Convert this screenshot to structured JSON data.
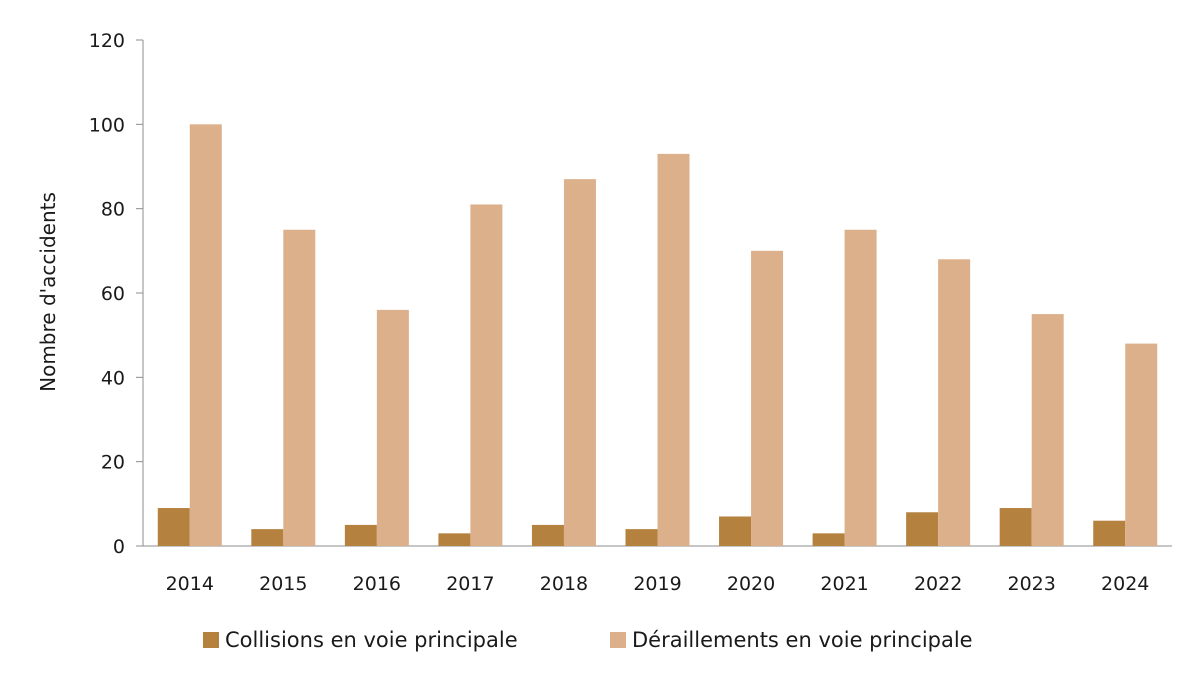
{
  "chart_data": {
    "type": "bar",
    "ylabel": "Nombre d'accidents",
    "ylim": [
      0,
      120
    ],
    "yticks": [
      0,
      20,
      40,
      60,
      80,
      100,
      120
    ],
    "categories": [
      "2014",
      "2015",
      "2016",
      "2017",
      "2018",
      "2019",
      "2020",
      "2021",
      "2022",
      "2023",
      "2024"
    ],
    "series": [
      {
        "name": "Collisions en voie principale",
        "color": "#b5813e",
        "values": [
          9,
          4,
          5,
          3,
          5,
          4,
          7,
          3,
          8,
          9,
          6
        ]
      },
      {
        "name": "Déraillements en voie principale",
        "color": "#dcb08a",
        "values": [
          100,
          75,
          56,
          81,
          87,
          93,
          70,
          75,
          68,
          55,
          48
        ]
      }
    ],
    "grid": false,
    "legend_position": "bottom"
  }
}
